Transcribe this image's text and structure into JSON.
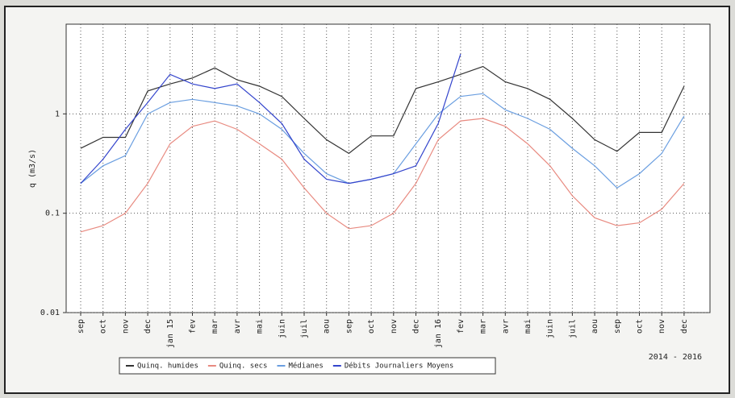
{
  "chart_data": {
    "type": "line",
    "y_label": "q (m3/s)",
    "annotation": "2014 - 2016",
    "log_y": true,
    "grid": true,
    "legend": "bottom",
    "categories": [
      "sep",
      "oct",
      "nov",
      "dec",
      "jan 15",
      "fev",
      "mar",
      "avr",
      "mai",
      "juin",
      "juil",
      "aou",
      "sep",
      "oct",
      "nov",
      "dec",
      "jan 16",
      "fev",
      "mar",
      "avr",
      "mai",
      "juin",
      "juil",
      "aou",
      "sep",
      "oct",
      "nov",
      "dec"
    ],
    "ylim": [
      0.01,
      8
    ],
    "yticks": [
      0.01,
      0.1,
      1
    ],
    "series": [
      {
        "name": "Quinq. humides",
        "color": "#333333",
        "values": [
          0.45,
          0.58,
          0.58,
          1.7,
          2.0,
          2.3,
          2.9,
          2.2,
          1.9,
          1.5,
          0.9,
          0.55,
          0.4,
          0.6,
          0.6,
          1.8,
          2.1,
          2.5,
          3.0,
          2.1,
          1.8,
          1.4,
          0.9,
          0.55,
          0.42,
          0.65,
          0.65,
          1.9
        ]
      },
      {
        "name": "Quinq. secs",
        "color": "#e88a80",
        "values": [
          0.065,
          0.075,
          0.1,
          0.2,
          0.5,
          0.75,
          0.85,
          0.7,
          0.5,
          0.35,
          0.18,
          0.1,
          0.07,
          0.075,
          0.1,
          0.2,
          0.55,
          0.85,
          0.9,
          0.75,
          0.5,
          0.3,
          0.15,
          0.09,
          0.075,
          0.08,
          0.11,
          0.2
        ]
      },
      {
        "name": "Médianes",
        "color": "#6a9ee0",
        "values": [
          0.2,
          0.3,
          0.38,
          1.0,
          1.3,
          1.4,
          1.3,
          1.2,
          1.0,
          0.7,
          0.4,
          0.25,
          0.2,
          0.22,
          0.25,
          0.5,
          1.0,
          1.5,
          1.6,
          1.1,
          0.9,
          0.7,
          0.45,
          0.3,
          0.18,
          0.25,
          0.4,
          0.95
        ]
      },
      {
        "name": "Débits Journaliers Moyens",
        "color": "#3344cc",
        "values": [
          0.2,
          0.35,
          0.7,
          1.3,
          2.5,
          2.0,
          1.8,
          2.0,
          1.3,
          0.8,
          0.35,
          0.22,
          0.2,
          0.22,
          0.25,
          0.3,
          0.8,
          4.0,
          null,
          null,
          null,
          null,
          null,
          null,
          null,
          null,
          null,
          null
        ]
      }
    ]
  }
}
